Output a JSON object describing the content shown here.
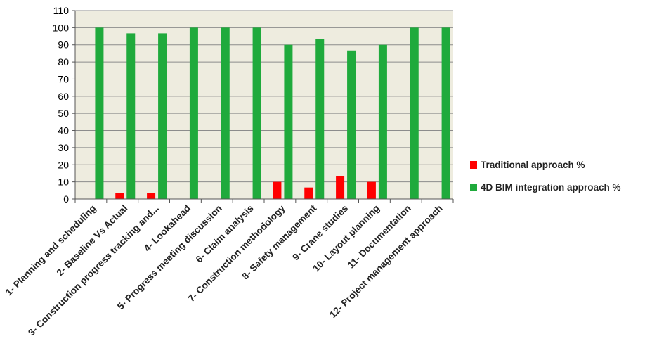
{
  "chart_data": {
    "type": "bar",
    "categories": [
      "1- Planning and scheduling",
      "2- Baseline Vs Actual",
      "3- Construction progress tracking and...",
      "4- Lookahead",
      "5- Progress meeting discussion",
      "6- Claim analysis",
      "7- Construction methodology",
      "8- Safety management",
      "9- Crane studies",
      "10- Layout planning",
      "11- Documentation",
      "12- Project management  approach"
    ],
    "series": [
      {
        "name": "Traditional approach %",
        "values": [
          0,
          3.3,
          3.3,
          0,
          0,
          0,
          10,
          6.7,
          13.3,
          10,
          0,
          0
        ],
        "color": "#ff0000"
      },
      {
        "name": "4D BIM integration  approach %",
        "values": [
          100,
          96.7,
          96.7,
          100,
          100,
          100,
          90,
          93.3,
          86.7,
          90,
          100,
          100
        ],
        "color": "#1faa3c"
      }
    ],
    "yticks": [
      "0",
      "10",
      "20",
      "30",
      "40",
      "50",
      "60",
      "70",
      "80",
      "90",
      "100",
      "110"
    ],
    "ylim": [
      0,
      110
    ],
    "grid": true,
    "legend_position": "right",
    "plot_background": "#eeecdf",
    "title": "",
    "xlabel": "",
    "ylabel": ""
  }
}
